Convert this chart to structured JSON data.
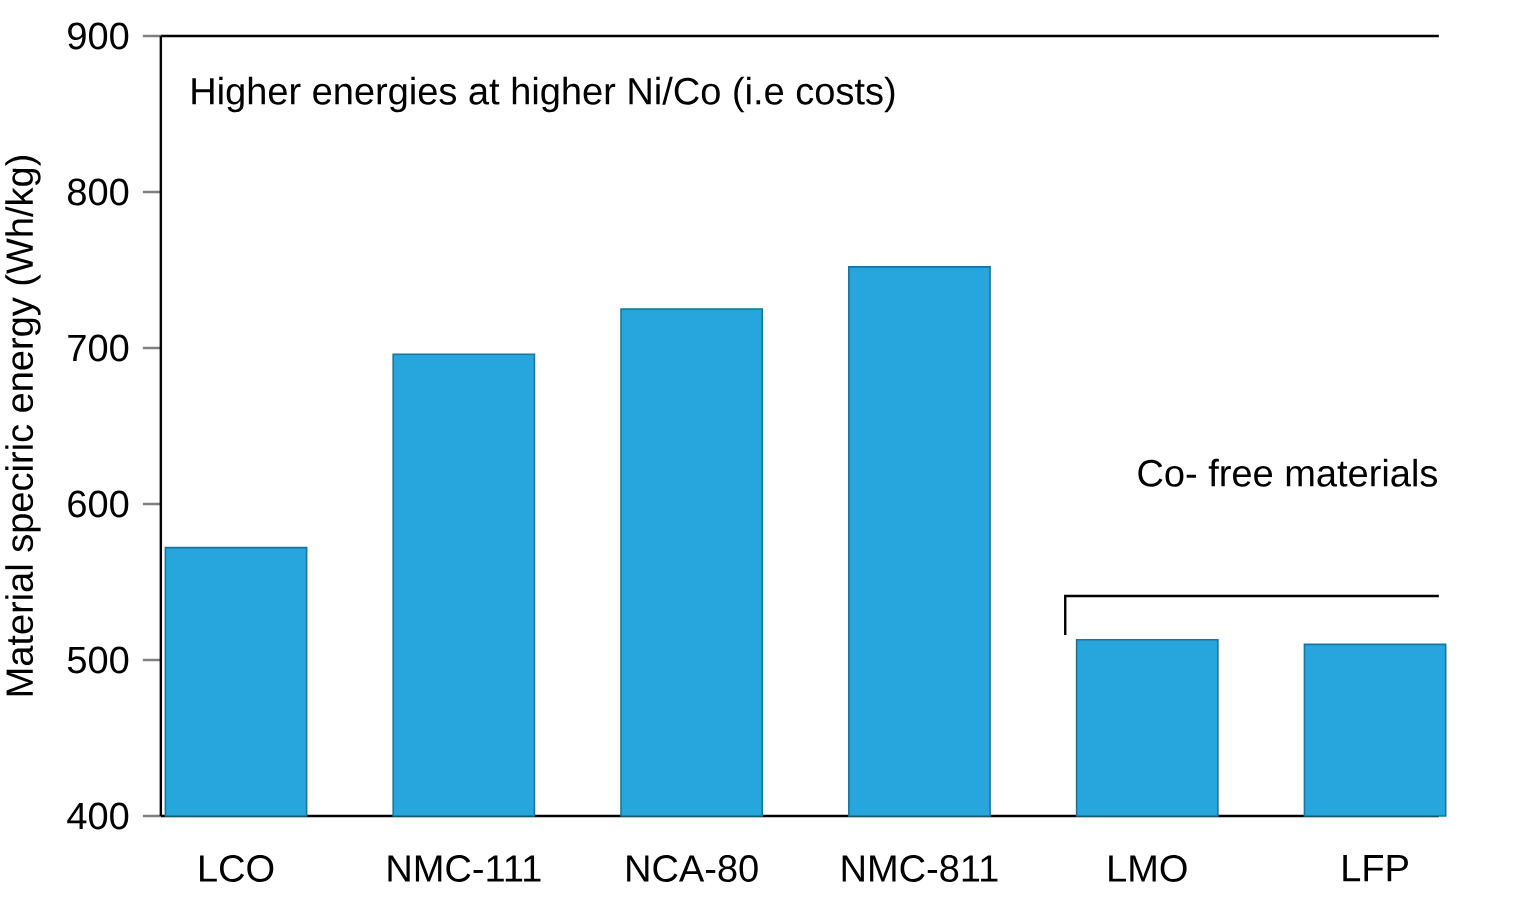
{
  "chart_data": {
    "type": "bar",
    "ylabel": "Material speciric energy (Wh/kg)",
    "categories": [
      "LCO",
      "NMC-111",
      "NCA-80",
      "NMC-811",
      "LMO",
      "LFP"
    ],
    "values": [
      572,
      696,
      725,
      752,
      513,
      510
    ],
    "color": "#27a6dd",
    "ylim": [
      400,
      900
    ],
    "yticks": [
      400,
      500,
      600,
      700,
      800,
      900
    ],
    "annotations": [
      "Higher energies at higher Ni/Co (i.e costs)",
      "Co- free materials"
    ]
  }
}
